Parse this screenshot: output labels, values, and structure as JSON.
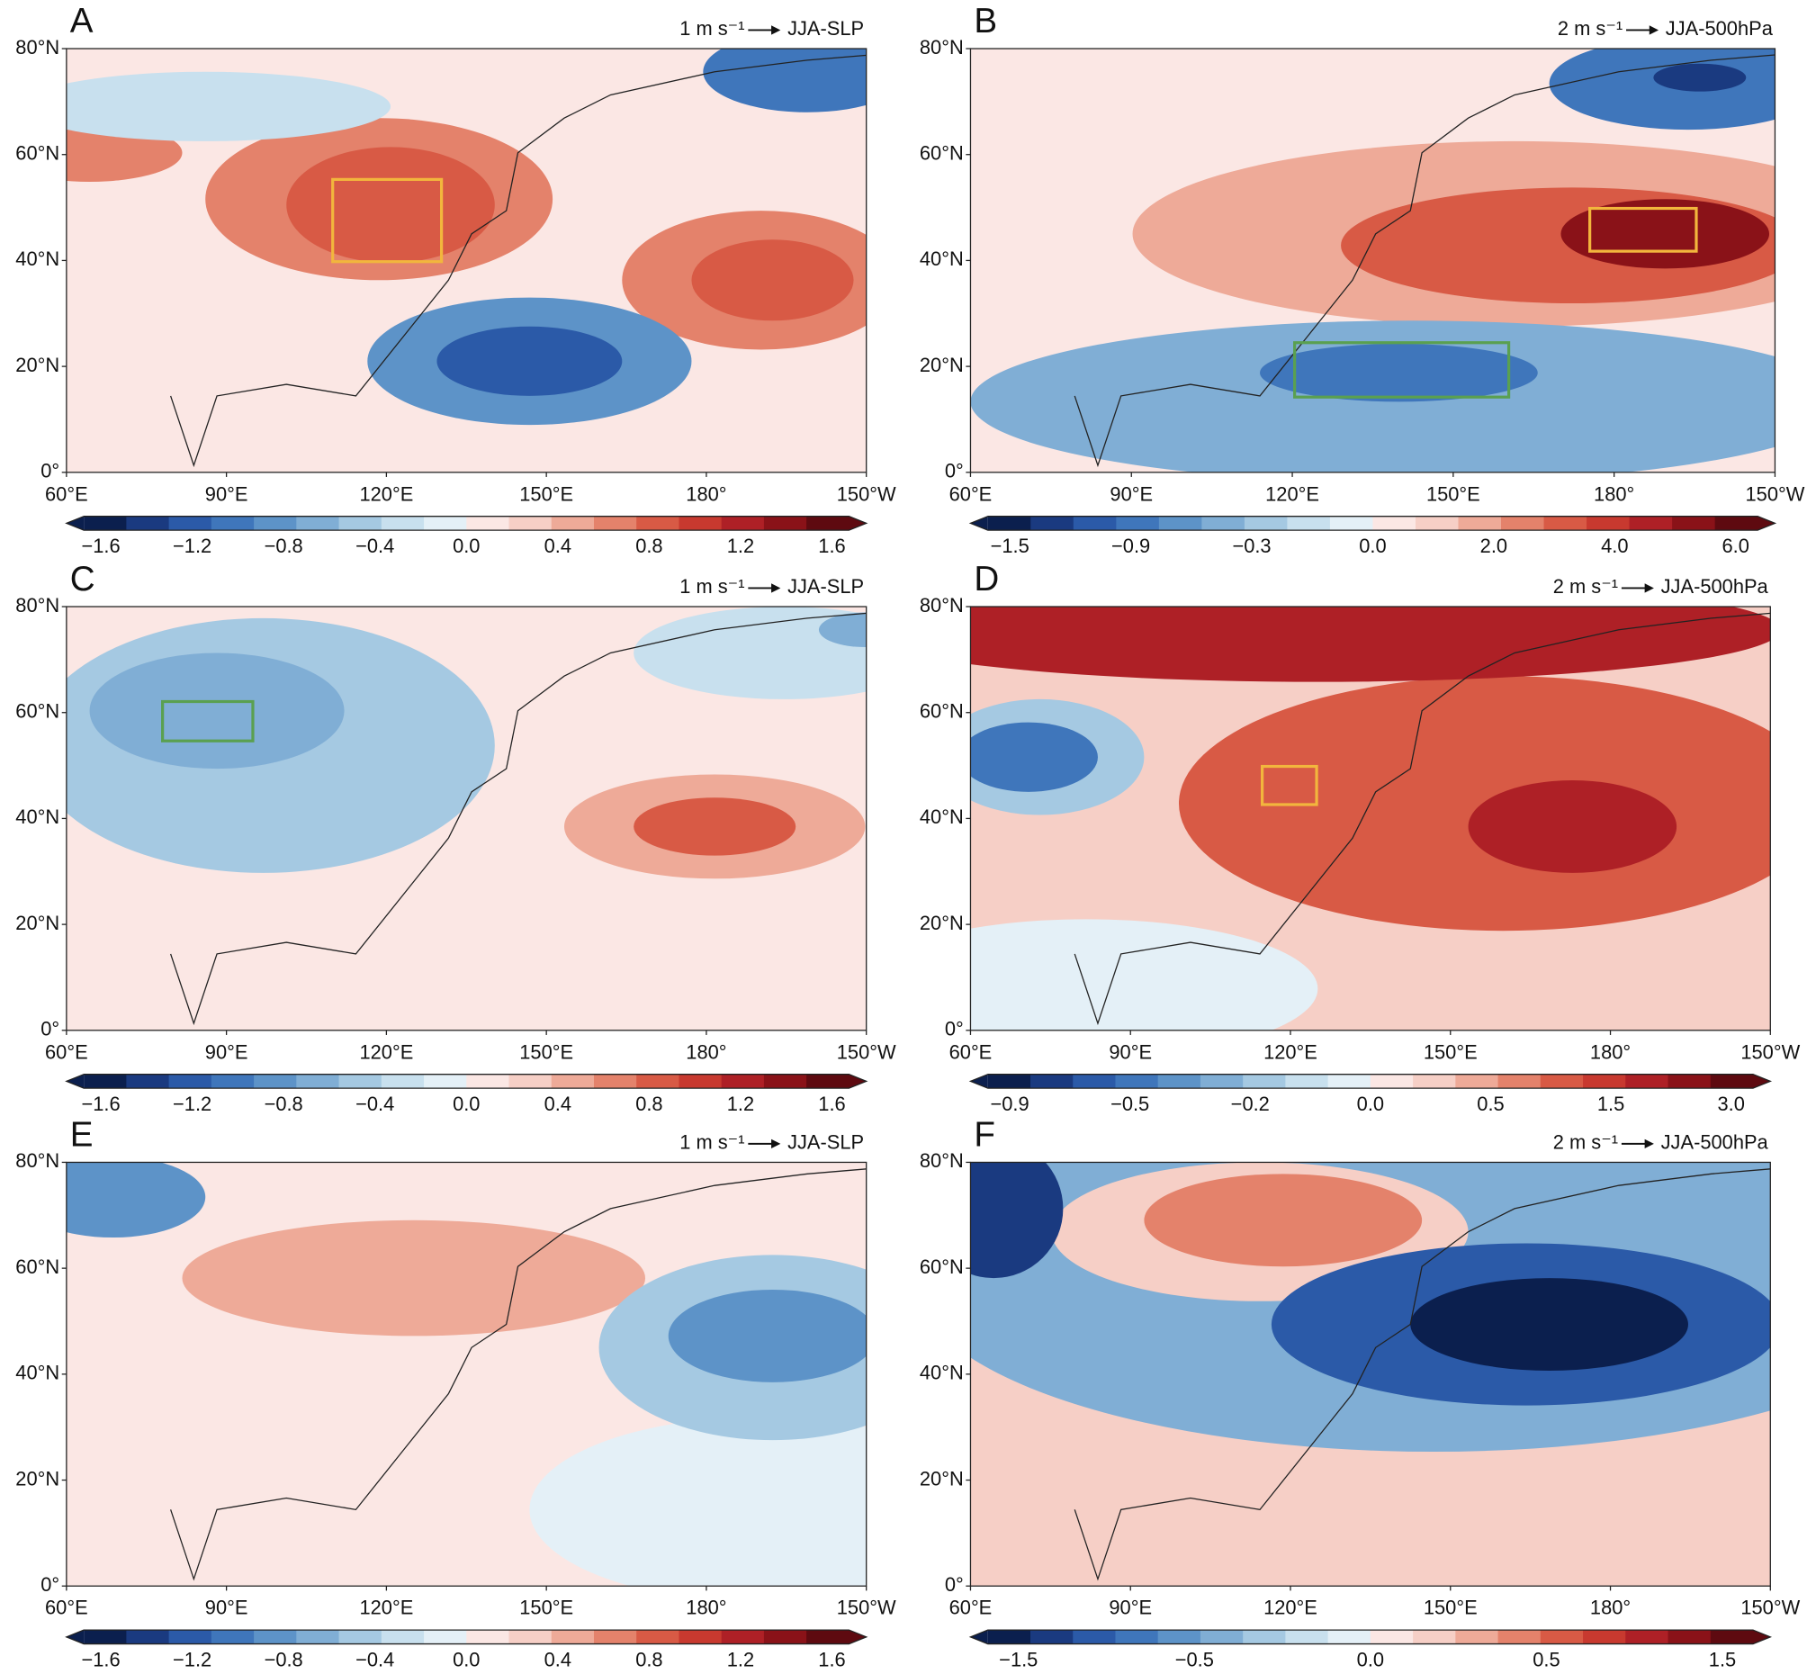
{
  "panels": [
    {
      "label": "A",
      "scale": "1 m s⁻¹",
      "title": "JJA-SLP",
      "colorbar_labels": [
        "−1.6",
        "−1.2",
        "−0.8",
        "−0.4",
        "0.0",
        "0.4",
        "0.8",
        "1.2",
        "1.6"
      ]
    },
    {
      "label": "B",
      "scale": "2 m s⁻¹",
      "title": "JJA-500hPa",
      "colorbar_labels": [
        "−1.5",
        "−0.9",
        "−0.3",
        "0.0",
        "2.0",
        "4.0",
        "6.0"
      ]
    },
    {
      "label": "C",
      "scale": "1 m s⁻¹",
      "title": "JJA-SLP",
      "colorbar_labels": [
        "−1.6",
        "−1.2",
        "−0.8",
        "−0.4",
        "0.0",
        "0.4",
        "0.8",
        "1.2",
        "1.6"
      ]
    },
    {
      "label": "D",
      "scale": "2 m s⁻¹",
      "title": "JJA-500hPa",
      "colorbar_labels": [
        "−0.9",
        "−0.5",
        "−0.2",
        "0.0",
        "0.5",
        "1.5",
        "3.0"
      ]
    },
    {
      "label": "E",
      "scale": "1 m s⁻¹",
      "title": "JJA-SLP",
      "colorbar_labels": [
        "−1.6",
        "−1.2",
        "−0.8",
        "−0.4",
        "0.0",
        "0.4",
        "0.8",
        "1.2",
        "1.6"
      ]
    },
    {
      "label": "F",
      "scale": "2 m s⁻¹",
      "title": "JJA-500hPa",
      "colorbar_labels": [
        "−1.5",
        "−0.5",
        "0.0",
        "0.5",
        "1.5"
      ]
    }
  ],
  "lon_labels": [
    "60°E",
    "90°E",
    "120°E",
    "150°E",
    "180°",
    "150°W"
  ],
  "lat_labels": [
    "0°",
    "20°N",
    "40°N",
    "60°N",
    "80°N"
  ]
}
